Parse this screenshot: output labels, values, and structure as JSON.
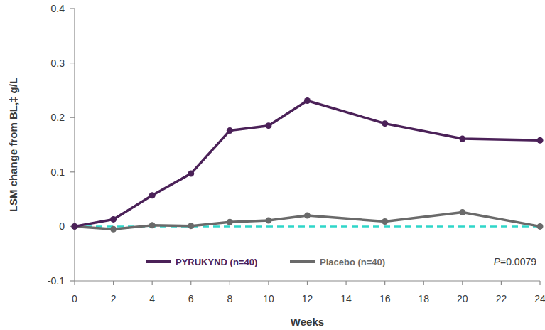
{
  "chart_data": {
    "type": "line",
    "x_label": "Weeks",
    "y_label": "LSM change from BL,‡ g/L",
    "x": [
      0,
      2,
      4,
      6,
      8,
      10,
      12,
      16,
      20,
      24
    ],
    "series": [
      {
        "name": "PYRUKYND (n=40)",
        "color": "#4b2158",
        "marker": "circle",
        "values": [
          0,
          0.013,
          0.057,
          0.097,
          0.176,
          0.185,
          0.231,
          0.189,
          0.161,
          0.158
        ]
      },
      {
        "name": "Placebo (n=40)",
        "color": "#6a6a6a",
        "marker": "circle",
        "values": [
          0,
          -0.005,
          0.002,
          0.001,
          0.008,
          0.011,
          0.02,
          0.009,
          0.026,
          0
        ]
      }
    ],
    "reference_lines": [
      {
        "value": 0,
        "color": "#2fd6c9",
        "line_style": "dashed"
      }
    ],
    "annotations": [
      {
        "text": "P=0.0079"
      }
    ],
    "legend": "bottom",
    "xlim": [
      0,
      24
    ],
    "xticks": [
      0,
      2,
      4,
      6,
      8,
      10,
      12,
      14,
      16,
      18,
      20,
      22,
      24
    ],
    "ylim": [
      -0.1,
      0.4
    ],
    "yticks": [
      -0.1,
      0,
      0.1,
      0.2,
      0.3,
      0.4
    ],
    "grid": false
  }
}
